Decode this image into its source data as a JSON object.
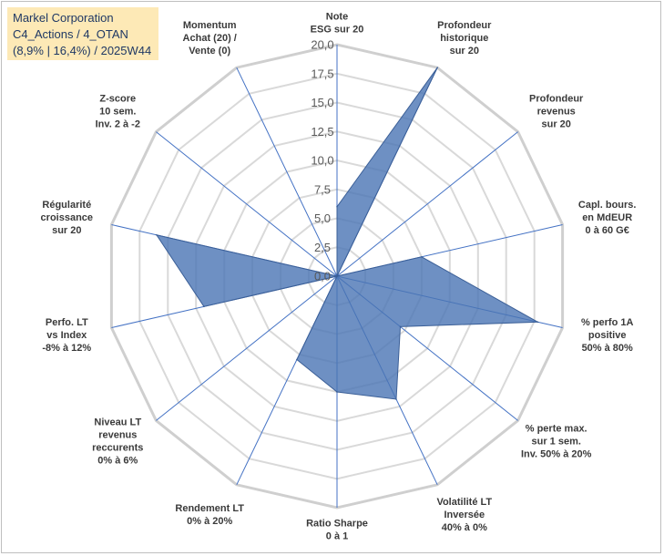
{
  "title_box": {
    "line1": "Markel Corporation",
    "line2": "C4_Actions / 4_OTAN",
    "line3": "(8,9% | 16,4%) / 2025W44"
  },
  "colors": {
    "fill": "#4a74b4",
    "fill_opacity": "0.8",
    "stroke": "#3b5f97",
    "spoke": "#4472c4",
    "grid": "#d9d9d9",
    "title_bg": "#fde9b6"
  },
  "chart_data": {
    "type": "radar",
    "min": 0,
    "max": 20,
    "ticks": [
      "0,0",
      "2,5",
      "5,0",
      "7,5",
      "10,0",
      "12,5",
      "15,0",
      "17,5",
      "20,0"
    ],
    "axes": [
      {
        "label": [
          "Note",
          "ESG sur 20"
        ],
        "value": 6
      },
      {
        "label": [
          "Profondeur",
          "historique",
          "sur 20"
        ],
        "value": 20
      },
      {
        "label": [
          "Profondeur",
          "revenus",
          "sur 20"
        ],
        "value": 0
      },
      {
        "label": [
          "Capl. bours.",
          "en MdEUR",
          "0 à 60 G€"
        ],
        "value": 7.5
      },
      {
        "label": [
          "% perfo 1A",
          "positive",
          "50% à 80%"
        ],
        "value": 17.8
      },
      {
        "label": [
          "% perte max.",
          "sur 1 sem.",
          "Inv. 50% à 20%"
        ],
        "value": 7
      },
      {
        "label": [
          "Volatilité LT",
          "Inversée",
          "40% à 0%"
        ],
        "value": 11.8
      },
      {
        "label": [
          "Ratio Sharpe",
          "0 à 1"
        ],
        "value": 10
      },
      {
        "label": [
          "Rendement LT",
          "0% à 20%"
        ],
        "value": 8
      },
      {
        "label": [
          "Niveau LT",
          "revenus",
          "reccurents",
          "0% à 6%"
        ],
        "value": 0
      },
      {
        "label": [
          "Perfo. LT",
          "vs Index",
          "-8% à 12%"
        ],
        "value": 11.8
      },
      {
        "label": [
          "Régularité",
          "croissance",
          "sur 20"
        ],
        "value": 16
      },
      {
        "label": [
          "Z-score",
          "10 sem.",
          "Inv. 2 à -2"
        ],
        "value": 0
      },
      {
        "label": [
          "Momentum",
          "Achat (20) /",
          "Vente (0)"
        ],
        "value": 0
      }
    ]
  }
}
